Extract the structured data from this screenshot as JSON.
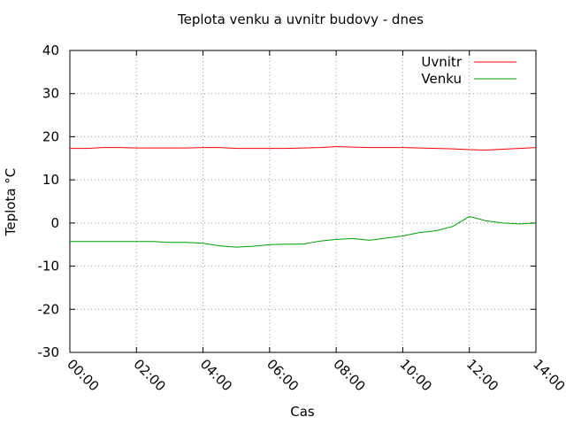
{
  "chart_data": {
    "type": "line",
    "title": "Teplota venku a uvnitr budovy - dnes",
    "x_label": "Cas",
    "y_label": "Teplota °C",
    "x": [
      0,
      0.5,
      1,
      1.5,
      2,
      2.5,
      3,
      3.5,
      4,
      4.5,
      5,
      5.5,
      6,
      6.5,
      7,
      7.5,
      8,
      8.5,
      9,
      9.5,
      10,
      10.5,
      11,
      11.5,
      12,
      12.5,
      13,
      13.5,
      14
    ],
    "series": [
      {
        "name": "Uvnitr",
        "color": "#ff0000",
        "values": [
          17.3,
          17.3,
          17.5,
          17.5,
          17.4,
          17.4,
          17.4,
          17.4,
          17.5,
          17.5,
          17.3,
          17.3,
          17.3,
          17.3,
          17.4,
          17.5,
          17.7,
          17.6,
          17.5,
          17.5,
          17.5,
          17.4,
          17.3,
          17.2,
          17.0,
          16.9,
          17.1,
          17.3,
          17.5
        ]
      },
      {
        "name": "Venku",
        "color": "#00a000",
        "values": [
          -4.3,
          -4.3,
          -4.3,
          -4.3,
          -4.3,
          -4.3,
          -4.5,
          -4.5,
          -4.7,
          -5.3,
          -5.6,
          -5.4,
          -5.0,
          -4.9,
          -4.9,
          -4.2,
          -3.8,
          -3.6,
          -4.0,
          -3.5,
          -3.0,
          -2.2,
          -1.8,
          -0.8,
          1.5,
          0.5,
          0.0,
          -0.2,
          0.0
        ]
      }
    ],
    "xlim": [
      0,
      14
    ],
    "xticks": [
      {
        "value": 0,
        "label": "00:00"
      },
      {
        "value": 2,
        "label": "02:00"
      },
      {
        "value": 4,
        "label": "04:00"
      },
      {
        "value": 6,
        "label": "06:00"
      },
      {
        "value": 8,
        "label": "08:00"
      },
      {
        "value": 10,
        "label": "10:00"
      },
      {
        "value": 12,
        "label": "12:00"
      },
      {
        "value": 14,
        "label": "14:00"
      }
    ],
    "ylim": [
      -30,
      40
    ],
    "yticks": [
      -30,
      -20,
      -10,
      0,
      10,
      20,
      30,
      40
    ],
    "grid": true,
    "legend": "top-right"
  }
}
